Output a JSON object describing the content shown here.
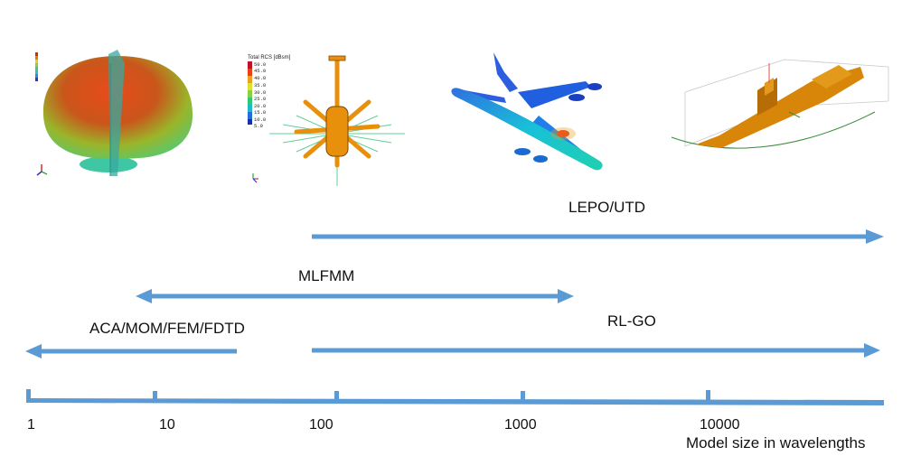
{
  "methods": [
    {
      "id": "lepo",
      "label": "LEPO/UTD"
    },
    {
      "id": "mlfmm",
      "label": "MLFMM"
    },
    {
      "id": "aca",
      "label": "ACA/MOM/FEM/FDTD"
    },
    {
      "id": "rlgo",
      "label": "RL-GO"
    }
  ],
  "axis": {
    "ticks": [
      "1",
      "10",
      "100",
      "1000",
      "10000"
    ],
    "caption": "Model size in wavelengths"
  },
  "thumbnails": {
    "rcs_legend_title": "Total RCS [dBsm]",
    "rcs_legend_values": [
      "50.0",
      "45.0",
      "40.0",
      "35.0",
      "30.0",
      "25.0",
      "20.0",
      "15.0",
      "10.0",
      "5.0"
    ]
  },
  "colors": {
    "arrow": "#5b9bd5",
    "orange": "#e8900c"
  }
}
